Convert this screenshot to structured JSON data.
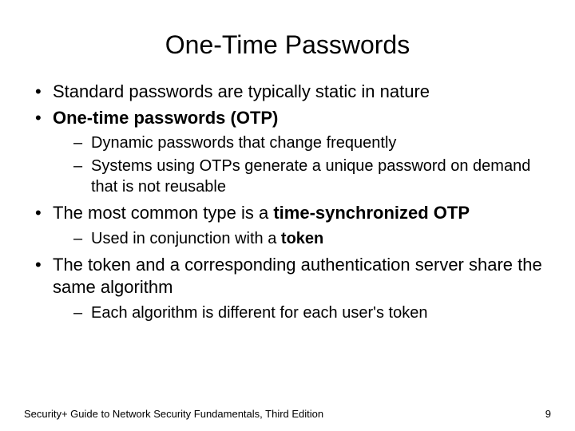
{
  "title": "One-Time Passwords",
  "bullets": {
    "b1": "Standard passwords are typically static in nature",
    "b2_bold": "One-time passwords (OTP)",
    "b2_sub1": "Dynamic passwords that change frequently",
    "b2_sub2": "Systems using OTPs generate a unique password on demand that is not reusable",
    "b3_pre": "The most common type is a ",
    "b3_bold": "time-synchronized OTP",
    "b3_sub1_pre": "Used in conjunction with a ",
    "b3_sub1_bold": "token",
    "b4": "The token and a corresponding authentication server share the same algorithm",
    "b4_sub1": "Each algorithm is different for each user's token"
  },
  "footer": {
    "text": "Security+ Guide to Network Security Fundamentals, Third Edition",
    "page": "9"
  }
}
